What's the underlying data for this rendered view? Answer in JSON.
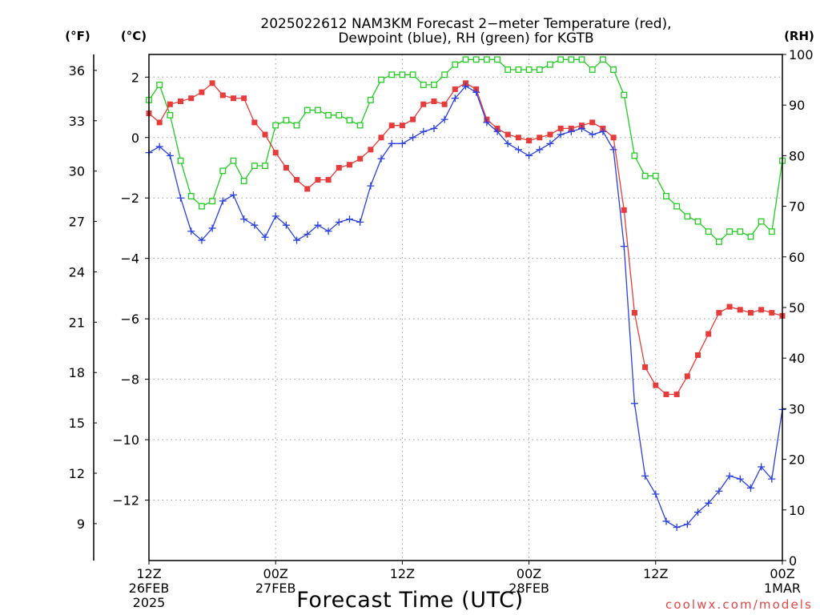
{
  "watermark": "coolwx.com/models",
  "chart_data": {
    "type": "line",
    "title": [
      "2025022612 NAM3KM Forecast 2−meter Temperature (red),",
      "Dewpoint (blue), RH (green) for KGTB"
    ],
    "xlabel": "Forecast Time (UTC)",
    "ylabel_left_f": "(°F)",
    "ylabel_left_c": "(°C)",
    "ylabel_right": "(RH)",
    "grid": true,
    "xlim": [
      "2025-02-26T12:00Z",
      "2025-03-01T00:00Z"
    ],
    "xticks": [
      {
        "at": "2025-02-26T12:00Z",
        "label": [
          "12Z",
          "26FEB",
          "2025"
        ]
      },
      {
        "at": "2025-02-27T00:00Z",
        "label": [
          "00Z",
          "27FEB"
        ]
      },
      {
        "at": "2025-02-27T12:00Z",
        "label": [
          "12Z"
        ]
      },
      {
        "at": "2025-02-28T00:00Z",
        "label": [
          "00Z",
          "28FEB"
        ]
      },
      {
        "at": "2025-02-28T12:00Z",
        "label": [
          "12Z"
        ]
      },
      {
        "at": "2025-03-01T00:00Z",
        "label": [
          "00Z",
          "1MAR"
        ]
      }
    ],
    "ylim_c": [
      -14,
      2.75
    ],
    "yticks_c": [
      2,
      0,
      -2,
      -4,
      -6,
      -8,
      -10,
      -12
    ],
    "yticks_f": [
      36,
      33,
      30,
      27,
      24,
      21,
      18,
      15,
      12,
      9
    ],
    "ylim_rh": [
      0,
      100
    ],
    "yticks_rh": [
      100,
      90,
      80,
      70,
      60,
      50,
      40,
      30,
      20,
      10,
      0
    ],
    "x": [
      "2025-02-26T12:00Z",
      "2025-02-26T13:00Z",
      "2025-02-26T14:00Z",
      "2025-02-26T15:00Z",
      "2025-02-26T16:00Z",
      "2025-02-26T17:00Z",
      "2025-02-26T18:00Z",
      "2025-02-26T19:00Z",
      "2025-02-26T20:00Z",
      "2025-02-26T21:00Z",
      "2025-02-26T22:00Z",
      "2025-02-26T23:00Z",
      "2025-02-27T00:00Z",
      "2025-02-27T01:00Z",
      "2025-02-27T02:00Z",
      "2025-02-27T03:00Z",
      "2025-02-27T04:00Z",
      "2025-02-27T05:00Z",
      "2025-02-27T06:00Z",
      "2025-02-27T07:00Z",
      "2025-02-27T08:00Z",
      "2025-02-27T09:00Z",
      "2025-02-27T10:00Z",
      "2025-02-27T11:00Z",
      "2025-02-27T12:00Z",
      "2025-02-27T13:00Z",
      "2025-02-27T14:00Z",
      "2025-02-27T15:00Z",
      "2025-02-27T16:00Z",
      "2025-02-27T17:00Z",
      "2025-02-27T18:00Z",
      "2025-02-27T19:00Z",
      "2025-02-27T20:00Z",
      "2025-02-27T21:00Z",
      "2025-02-27T22:00Z",
      "2025-02-27T23:00Z",
      "2025-02-28T00:00Z",
      "2025-02-28T01:00Z",
      "2025-02-28T02:00Z",
      "2025-02-28T03:00Z",
      "2025-02-28T04:00Z",
      "2025-02-28T05:00Z",
      "2025-02-28T06:00Z",
      "2025-02-28T07:00Z",
      "2025-02-28T08:00Z",
      "2025-02-28T09:00Z",
      "2025-02-28T10:00Z",
      "2025-02-28T11:00Z",
      "2025-02-28T12:00Z",
      "2025-02-28T13:00Z",
      "2025-02-28T14:00Z",
      "2025-02-28T15:00Z",
      "2025-02-28T16:00Z",
      "2025-02-28T17:00Z",
      "2025-02-28T18:00Z",
      "2025-02-28T19:00Z",
      "2025-02-28T20:00Z",
      "2025-02-28T21:00Z",
      "2025-02-28T22:00Z",
      "2025-02-28T23:00Z",
      "2025-03-01T00:00Z"
    ],
    "series": [
      {
        "axis": "left",
        "color": "#e63c3c",
        "marker": "filled-square",
        "values": [
          0.8,
          0.5,
          1.1,
          1.2,
          1.3,
          1.5,
          1.8,
          1.4,
          1.3,
          1.3,
          0.5,
          0.1,
          -0.5,
          -1.0,
          -1.4,
          -1.7,
          -1.4,
          -1.4,
          -1.0,
          -0.9,
          -0.7,
          -0.4,
          0.0,
          0.4,
          0.4,
          0.6,
          1.1,
          1.2,
          1.1,
          1.6,
          1.8,
          1.6,
          0.6,
          0.3,
          0.1,
          0.0,
          -0.1,
          0.0,
          0.1,
          0.3,
          0.3,
          0.4,
          0.5,
          0.3,
          0.0,
          -2.4,
          -5.8,
          -7.6,
          -8.2,
          -8.5,
          -8.5,
          -7.9,
          -7.2,
          -6.5,
          -5.8,
          -5.6,
          -5.7,
          -5.8,
          -5.7,
          -5.8,
          -5.9
        ]
      },
      {
        "axis": "left",
        "color": "#2b40e0",
        "marker": "plus",
        "values": [
          -0.5,
          -0.3,
          -0.6,
          -2.0,
          -3.1,
          -3.4,
          -3.0,
          -2.1,
          -1.9,
          -2.7,
          -2.9,
          -3.3,
          -2.6,
          -2.9,
          -3.4,
          -3.2,
          -2.9,
          -3.1,
          -2.8,
          -2.7,
          -2.8,
          -1.6,
          -0.7,
          -0.2,
          -0.2,
          0.0,
          0.2,
          0.3,
          0.6,
          1.3,
          1.7,
          1.5,
          0.5,
          0.2,
          -0.2,
          -0.4,
          -0.6,
          -0.4,
          -0.2,
          0.1,
          0.2,
          0.3,
          0.1,
          0.2,
          -0.4,
          -3.6,
          -8.8,
          -11.2,
          -11.8,
          -12.7,
          -12.9,
          -12.8,
          -12.4,
          -12.1,
          -11.7,
          -11.2,
          -11.3,
          -11.6,
          -10.9,
          -11.3,
          -9.0
        ]
      },
      {
        "axis": "right",
        "color": "#22cc22",
        "marker": "open-square",
        "values": [
          91,
          94,
          88,
          79,
          72,
          70,
          71,
          77,
          79,
          75,
          78,
          78,
          86,
          87,
          86,
          89,
          89,
          88,
          88,
          87,
          86,
          91,
          95,
          96,
          96,
          96,
          94,
          94,
          96,
          98,
          99,
          99,
          99,
          99,
          97,
          97,
          97,
          97,
          98,
          99,
          99,
          99,
          97,
          99,
          97,
          92,
          80,
          76,
          76,
          72,
          70,
          68,
          67,
          65,
          63,
          65,
          65,
          64,
          67,
          65,
          79
        ]
      }
    ]
  }
}
